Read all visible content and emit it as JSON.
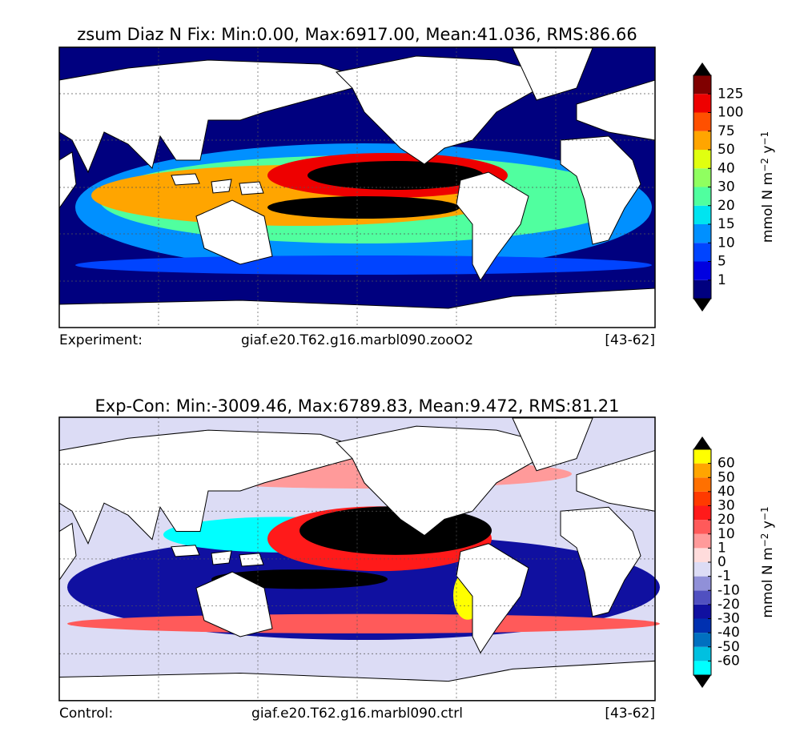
{
  "panels": [
    {
      "title": "zsum Diaz N Fix: Min:0.00, Max:6917.00, Mean:41.036, RMS:86.66",
      "footer": [
        "Experiment:",
        "giaf.e20.T62.g16.marbl090.zooO2",
        "[43-62]"
      ],
      "colorbar": {
        "units": [
          "mmol N m",
          "−2",
          " y",
          "−1"
        ],
        "ticks": [
          1,
          5,
          10,
          15,
          20,
          30,
          40,
          50,
          75,
          100,
          125
        ],
        "colors": [
          "#00007f",
          "#0000e0",
          "#0044ff",
          "#0090ff",
          "#00e4f0",
          "#50ff9f",
          "#90ff60",
          "#e0ff10",
          "#ffa500",
          "#ff5000",
          "#ee0000",
          "#800000"
        ]
      }
    },
    {
      "title": "Exp-Con: Min:-3009.46, Max:6789.83, Mean:9.472, RMS:81.21",
      "footer": [
        "Control:",
        "giaf.e20.T62.g16.marbl090.ctrl",
        "[43-62]"
      ],
      "colorbar": {
        "units": [
          "mmol N m",
          "−2",
          " y",
          "−1"
        ],
        "ticks": [
          -60,
          -50,
          -40,
          -30,
          -20,
          -10,
          -1,
          0,
          1,
          10,
          20,
          30,
          40,
          50,
          60
        ],
        "colors": [
          "#00ffff",
          "#00c0e0",
          "#0070c0",
          "#0030b0",
          "#1010a0",
          "#5050c0",
          "#9090d8",
          "#dcdcf5",
          "#ffdcdc",
          "#ff9a9a",
          "#ff5a5a",
          "#ff1a1a",
          "#ff3a00",
          "#ff7000",
          "#ffa500",
          "#ffff00"
        ]
      }
    }
  ]
}
